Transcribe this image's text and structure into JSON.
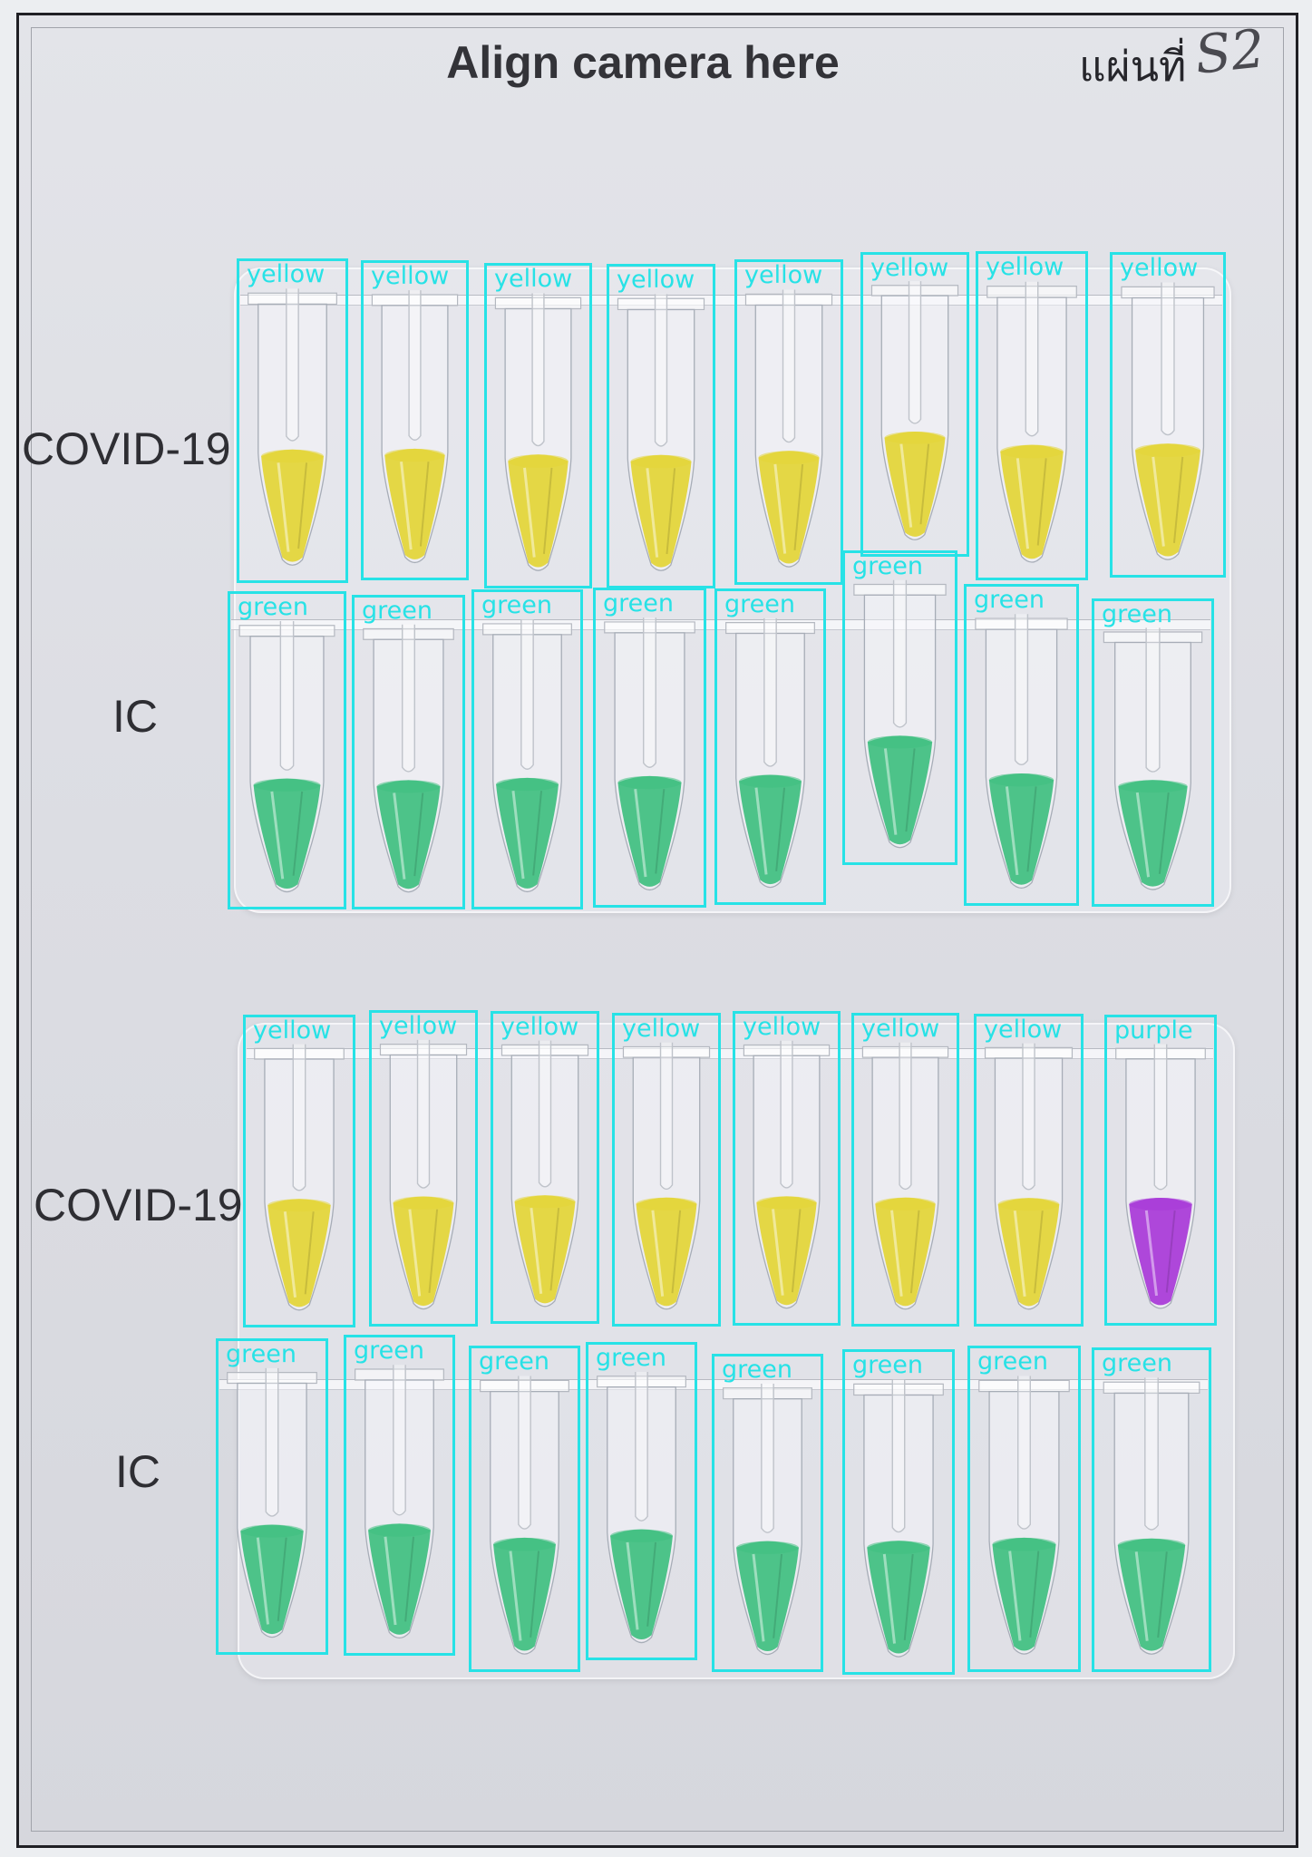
{
  "sheet": {
    "title": "Align camera here",
    "sheet_label": "แผ่นที่",
    "sheet_number": "S2"
  },
  "rows": [
    {
      "label": "COVID-19",
      "detections": [
        "yellow",
        "yellow",
        "yellow",
        "yellow",
        "yellow",
        "yellow",
        "yellow",
        "yellow"
      ]
    },
    {
      "label": "IC",
      "detections": [
        "green",
        "green",
        "green",
        "green",
        "green",
        "green",
        "green",
        "green"
      ]
    },
    {
      "label": "COVID-19",
      "detections": [
        "yellow",
        "yellow",
        "yellow",
        "yellow",
        "yellow",
        "yellow",
        "yellow",
        "purple"
      ]
    },
    {
      "label": "IC",
      "detections": [
        "green",
        "green",
        "green",
        "green",
        "green",
        "green",
        "green",
        "green"
      ]
    }
  ],
  "colors": {
    "yellow": "#e3d536",
    "green": "#3fbf80",
    "purple": "#a838d8",
    "detection_box": "#27e2e6"
  }
}
